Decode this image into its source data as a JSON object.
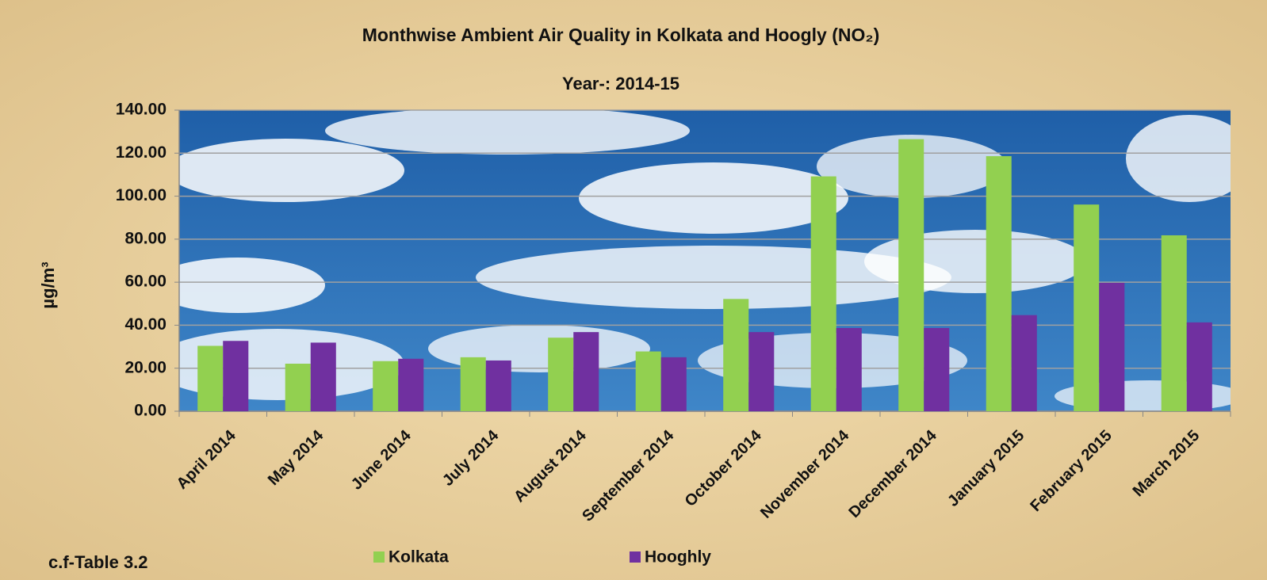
{
  "chart_data": {
    "type": "bar",
    "title": "Monthwise Ambient Air Quality in Kolkata and Hoogly (NO₂)",
    "subtitle": "Year-: 2014-15",
    "y_label": "µg/m³",
    "footnote": "c.f-Table 3.2",
    "categories": [
      "April 2014",
      "May 2014",
      "June 2014",
      "July 2014",
      "August 2014",
      "September 2014",
      "October 2014",
      "November 2014",
      "December 2014",
      "January 2015",
      "February 2015",
      "March 2015"
    ],
    "series": [
      {
        "name": "Kolkata",
        "color": "#92d050",
        "values": [
          30.4,
          22.1,
          23.3,
          25.1,
          34.2,
          27.8,
          52.2,
          109.2,
          126.5,
          118.6,
          96.1,
          81.8
        ]
      },
      {
        "name": "Hooghly",
        "color": "#7030a0",
        "values": [
          32.7,
          31.9,
          24.4,
          23.6,
          36.8,
          25.1,
          36.8,
          38.7,
          38.7,
          44.7,
          59.7,
          41.3
        ]
      }
    ],
    "ylim": [
      0,
      140
    ],
    "yticks": [
      {
        "value": 0,
        "label": "0.00"
      },
      {
        "value": 20,
        "label": "20.00"
      },
      {
        "value": 40,
        "label": "40.00"
      },
      {
        "value": 60,
        "label": "60.00"
      },
      {
        "value": 80,
        "label": "80.00"
      },
      {
        "value": 100,
        "label": "100.00"
      },
      {
        "value": 120,
        "label": "120.00"
      },
      {
        "value": 140,
        "label": "140.00"
      }
    ],
    "grid": true
  }
}
